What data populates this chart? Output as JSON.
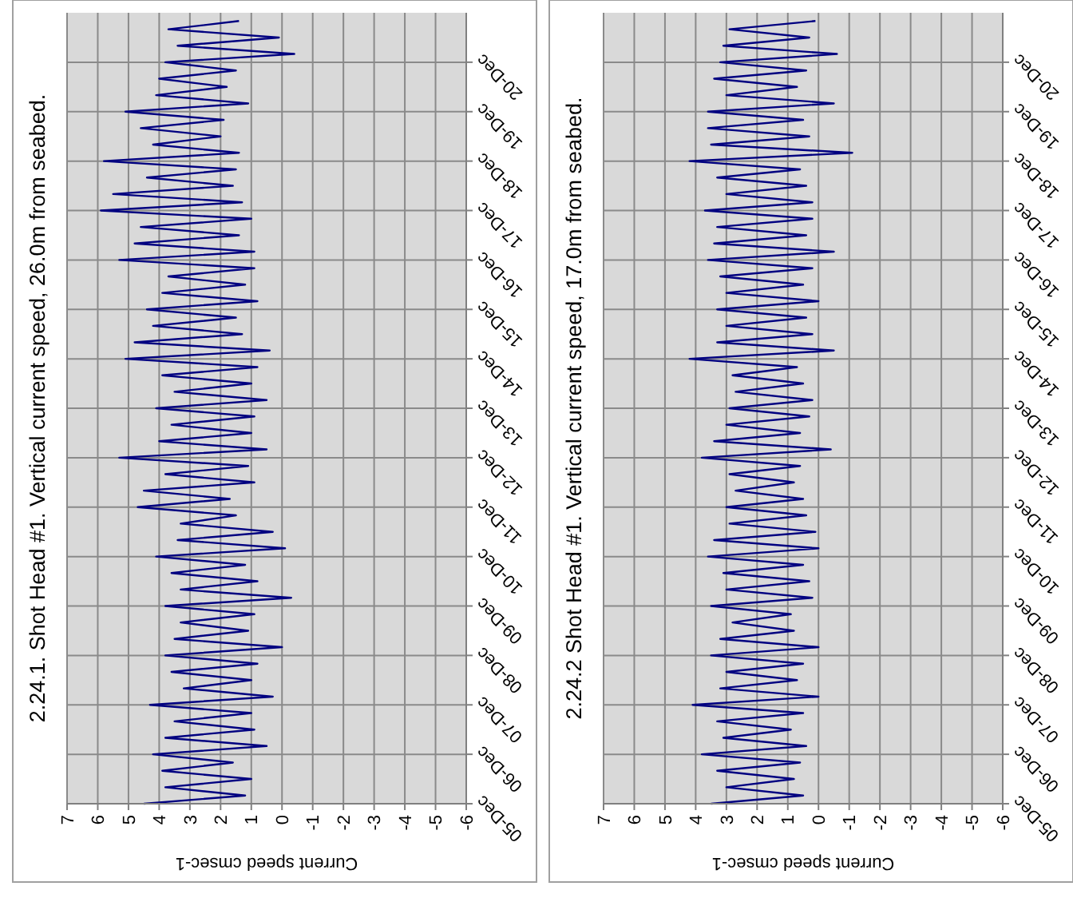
{
  "chart_data": [
    {
      "type": "line",
      "orientation": "horizontal",
      "title": "2.24.1. Shot Head #1. Vertical current speed, 26.0m from seabed.",
      "xlabel": "Current speed cmsec-1",
      "grid": true,
      "x": [
        "--12-05T00:00",
        "--12-05T04:00",
        "--12-05T08:00",
        "--12-05T12:00",
        "--12-05T16:00",
        "--12-05T20:00",
        "--12-06T00:00",
        "--12-06T04:00",
        "--12-06T08:00",
        "--12-06T12:00",
        "--12-06T16:00",
        "--12-06T20:00",
        "--12-07T00:00",
        "--12-07T04:00",
        "--12-07T08:00",
        "--12-07T12:00",
        "--12-07T16:00",
        "--12-07T20:00",
        "--12-08T00:00",
        "--12-08T04:00",
        "--12-08T08:00",
        "--12-08T12:00",
        "--12-08T16:00",
        "--12-08T20:00",
        "--12-09T00:00",
        "--12-09T04:00",
        "--12-09T08:00",
        "--12-09T12:00",
        "--12-09T16:00",
        "--12-09T20:00",
        "--12-10T00:00",
        "--12-10T04:00",
        "--12-10T08:00",
        "--12-10T12:00",
        "--12-10T16:00",
        "--12-10T20:00",
        "--12-11T00:00",
        "--12-11T04:00",
        "--12-11T08:00",
        "--12-11T12:00",
        "--12-11T16:00",
        "--12-11T20:00",
        "--12-12T00:00",
        "--12-12T04:00",
        "--12-12T08:00",
        "--12-12T12:00",
        "--12-12T16:00",
        "--12-12T20:00",
        "--12-13T00:00",
        "--12-13T04:00",
        "--12-13T08:00",
        "--12-13T12:00",
        "--12-13T16:00",
        "--12-13T20:00",
        "--12-14T00:00",
        "--12-14T04:00",
        "--12-14T08:00",
        "--12-14T12:00",
        "--12-14T16:00",
        "--12-14T20:00",
        "--12-15T00:00",
        "--12-15T04:00",
        "--12-15T08:00",
        "--12-15T12:00",
        "--12-15T16:00",
        "--12-15T20:00",
        "--12-16T00:00",
        "--12-16T04:00",
        "--12-16T08:00",
        "--12-16T12:00",
        "--12-16T16:00",
        "--12-16T20:00",
        "--12-17T00:00",
        "--12-17T04:00",
        "--12-17T08:00",
        "--12-17T12:00",
        "--12-17T16:00",
        "--12-17T20:00",
        "--12-18T00:00",
        "--12-18T04:00",
        "--12-18T08:00",
        "--12-18T12:00",
        "--12-18T16:00",
        "--12-18T20:00",
        "--12-19T00:00",
        "--12-19T04:00",
        "--12-19T08:00",
        "--12-19T12:00",
        "--12-19T16:00",
        "--12-19T20:00",
        "--12-20T00:00",
        "--12-20T04:00",
        "--12-20T08:00",
        "--12-20T12:00",
        "--12-20T16:00",
        "--12-20T20:00"
      ],
      "series": [
        {
          "color": "#000080",
          "values": [
            4.5,
            1.2,
            3.8,
            1.0,
            3.9,
            1.6,
            4.2,
            0.5,
            3.8,
            0.9,
            3.5,
            1.0,
            4.3,
            0.3,
            3.2,
            1.0,
            3.6,
            0.8,
            3.8,
            0.0,
            3.5,
            1.1,
            3.3,
            0.9,
            3.8,
            -0.3,
            3.3,
            0.8,
            3.6,
            1.2,
            4.1,
            -0.1,
            3.4,
            0.3,
            3.3,
            1.5,
            4.7,
            1.7,
            4.5,
            0.9,
            3.8,
            1.1,
            5.3,
            0.5,
            4.0,
            1.0,
            3.6,
            0.9,
            4.1,
            0.5,
            3.5,
            1.0,
            3.9,
            0.8,
            5.1,
            0.4,
            4.8,
            1.3,
            4.2,
            1.5,
            4.4,
            0.8,
            3.9,
            1.2,
            3.7,
            0.9,
            5.3,
            0.9,
            4.8,
            1.4,
            4.6,
            1.0,
            5.9,
            1.3,
            5.5,
            1.6,
            4.4,
            1.5,
            5.8,
            1.4,
            4.2,
            2.0,
            4.6,
            1.9,
            5.1,
            1.1,
            4.1,
            1.8,
            4.0,
            1.5,
            3.8,
            -0.4,
            3.4,
            0.1,
            3.7,
            1.4
          ]
        }
      ],
      "ylim": [
        "--12-05",
        "--12-21"
      ],
      "yticks": [
        {
          "value": "--12-05",
          "label": "05-Dec"
        },
        {
          "value": "--12-06",
          "label": "06-Dec"
        },
        {
          "value": "--12-07",
          "label": "07-Dec"
        },
        {
          "value": "--12-08",
          "label": "08-Dec"
        },
        {
          "value": "--12-09",
          "label": "09-Dec"
        },
        {
          "value": "--12-10",
          "label": "10-Dec"
        },
        {
          "value": "--12-11",
          "label": "11-Dec"
        },
        {
          "value": "--12-12",
          "label": "12-Dec"
        },
        {
          "value": "--12-13",
          "label": "13-Dec"
        },
        {
          "value": "--12-14",
          "label": "14-Dec"
        },
        {
          "value": "--12-15",
          "label": "15-Dec"
        },
        {
          "value": "--12-16",
          "label": "16-Dec"
        },
        {
          "value": "--12-17",
          "label": "17-Dec"
        },
        {
          "value": "--12-18",
          "label": "18-Dec"
        },
        {
          "value": "--12-19",
          "label": "19-Dec"
        },
        {
          "value": "--12-20",
          "label": "20-Dec"
        }
      ],
      "xlim": [
        7,
        -6
      ],
      "xticks": [
        7,
        6,
        5,
        4,
        3,
        2,
        1,
        0,
        -1,
        -2,
        -3,
        -4,
        -5,
        -6
      ]
    },
    {
      "type": "line",
      "orientation": "horizontal",
      "title": "2.24.2  Shot Head #1. Vertical current speed, 17.0m from seabed.",
      "xlabel": "Current speed cmsec-1",
      "grid": true,
      "x": [
        "--12-05T00:00",
        "--12-05T04:00",
        "--12-05T08:00",
        "--12-05T12:00",
        "--12-05T16:00",
        "--12-05T20:00",
        "--12-06T00:00",
        "--12-06T04:00",
        "--12-06T08:00",
        "--12-06T12:00",
        "--12-06T16:00",
        "--12-06T20:00",
        "--12-07T00:00",
        "--12-07T04:00",
        "--12-07T08:00",
        "--12-07T12:00",
        "--12-07T16:00",
        "--12-07T20:00",
        "--12-08T00:00",
        "--12-08T04:00",
        "--12-08T08:00",
        "--12-08T12:00",
        "--12-08T16:00",
        "--12-08T20:00",
        "--12-09T00:00",
        "--12-09T04:00",
        "--12-09T08:00",
        "--12-09T12:00",
        "--12-09T16:00",
        "--12-09T20:00",
        "--12-10T00:00",
        "--12-10T04:00",
        "--12-10T08:00",
        "--12-10T12:00",
        "--12-10T16:00",
        "--12-10T20:00",
        "--12-11T00:00",
        "--12-11T04:00",
        "--12-11T08:00",
        "--12-11T12:00",
        "--12-11T16:00",
        "--12-11T20:00",
        "--12-12T00:00",
        "--12-12T04:00",
        "--12-12T08:00",
        "--12-12T12:00",
        "--12-12T16:00",
        "--12-12T20:00",
        "--12-13T00:00",
        "--12-13T04:00",
        "--12-13T08:00",
        "--12-13T12:00",
        "--12-13T16:00",
        "--12-13T20:00",
        "--12-14T00:00",
        "--12-14T04:00",
        "--12-14T08:00",
        "--12-14T12:00",
        "--12-14T16:00",
        "--12-14T20:00",
        "--12-15T00:00",
        "--12-15T04:00",
        "--12-15T08:00",
        "--12-15T12:00",
        "--12-15T16:00",
        "--12-15T20:00",
        "--12-16T00:00",
        "--12-16T04:00",
        "--12-16T08:00",
        "--12-16T12:00",
        "--12-16T16:00",
        "--12-16T20:00",
        "--12-17T00:00",
        "--12-17T04:00",
        "--12-17T08:00",
        "--12-17T12:00",
        "--12-17T16:00",
        "--12-17T20:00",
        "--12-18T00:00",
        "--12-18T04:00",
        "--12-18T08:00",
        "--12-18T12:00",
        "--12-18T16:00",
        "--12-18T20:00",
        "--12-19T00:00",
        "--12-19T04:00",
        "--12-19T08:00",
        "--12-19T12:00",
        "--12-19T16:00",
        "--12-19T20:00",
        "--12-20T00:00",
        "--12-20T04:00",
        "--12-20T08:00",
        "--12-20T12:00",
        "--12-20T16:00",
        "--12-20T20:00"
      ],
      "series": [
        {
          "color": "#000080",
          "values": [
            3.5,
            0.5,
            3.0,
            0.8,
            3.3,
            0.6,
            3.8,
            0.4,
            3.1,
            0.9,
            3.3,
            0.5,
            4.1,
            0.0,
            3.2,
            0.7,
            3.0,
            0.5,
            3.5,
            0.0,
            3.2,
            0.8,
            2.8,
            0.9,
            3.5,
            0.2,
            3.0,
            0.3,
            3.1,
            0.5,
            3.6,
            0.0,
            3.4,
            0.1,
            2.9,
            0.4,
            3.0,
            0.5,
            2.7,
            0.8,
            2.9,
            0.6,
            3.8,
            -0.4,
            3.4,
            0.6,
            3.0,
            0.3,
            2.9,
            0.2,
            2.7,
            0.5,
            2.8,
            0.7,
            4.2,
            -0.5,
            3.3,
            0.2,
            3.0,
            0.4,
            3.3,
            0.0,
            3.0,
            0.5,
            3.2,
            0.2,
            3.6,
            -0.5,
            3.4,
            0.4,
            3.3,
            0.2,
            3.7,
            0.2,
            3.0,
            0.4,
            3.3,
            0.6,
            4.2,
            -1.1,
            3.5,
            0.3,
            3.6,
            0.5,
            3.6,
            -0.5,
            3.0,
            0.7,
            3.4,
            0.4,
            3.2,
            -0.6,
            3.1,
            0.3,
            2.9,
            0.1
          ]
        }
      ],
      "ylim": [
        "--12-05",
        "--12-21"
      ],
      "yticks": [
        {
          "value": "--12-05",
          "label": "05-Dec"
        },
        {
          "value": "--12-06",
          "label": "06-Dec"
        },
        {
          "value": "--12-07",
          "label": "07-Dec"
        },
        {
          "value": "--12-08",
          "label": "08-Dec"
        },
        {
          "value": "--12-09",
          "label": "09-Dec"
        },
        {
          "value": "--12-10",
          "label": "10-Dec"
        },
        {
          "value": "--12-11",
          "label": "11-Dec"
        },
        {
          "value": "--12-12",
          "label": "12-Dec"
        },
        {
          "value": "--12-13",
          "label": "13-Dec"
        },
        {
          "value": "--12-14",
          "label": "14-Dec"
        },
        {
          "value": "--12-15",
          "label": "15-Dec"
        },
        {
          "value": "--12-16",
          "label": "16-Dec"
        },
        {
          "value": "--12-17",
          "label": "17-Dec"
        },
        {
          "value": "--12-18",
          "label": "18-Dec"
        },
        {
          "value": "--12-19",
          "label": "19-Dec"
        },
        {
          "value": "--12-20",
          "label": "20-Dec"
        }
      ],
      "xlim": [
        7,
        -6
      ],
      "xticks": [
        7,
        6,
        5,
        4,
        3,
        2,
        1,
        0,
        -1,
        -2,
        -3,
        -4,
        -5,
        -6
      ]
    }
  ]
}
